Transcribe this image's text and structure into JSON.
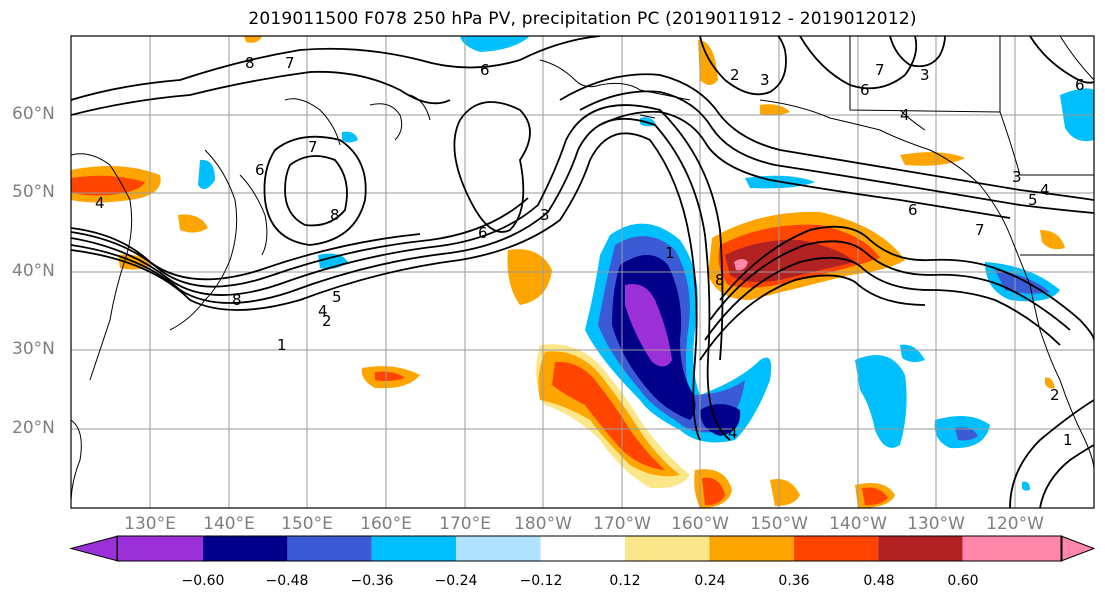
{
  "title": "2019011500 F078 250 hPa PV, precipitation PC (2019011912 - 2019012012)",
  "map": {
    "lat_labels": [
      "60°N",
      "50°N",
      "40°N",
      "30°N",
      "20°N"
    ],
    "lon_labels": [
      "130°E",
      "140°E",
      "150°E",
      "160°E",
      "170°E",
      "180°W",
      "170°W",
      "160°W",
      "150°W",
      "140°W",
      "130°W",
      "120°W"
    ],
    "contour_labels": [
      "8",
      "7",
      "6",
      "3",
      "2",
      "6",
      "7",
      "6",
      "8",
      "5",
      "4",
      "3",
      "2",
      "1",
      "6",
      "8",
      "4",
      "1",
      "6",
      "7",
      "6",
      "4",
      "5",
      "3",
      "4",
      "2",
      "1",
      "7",
      "3",
      "8",
      "4"
    ]
  },
  "colorbar": {
    "ticks": [
      "−0.60",
      "−0.48",
      "−0.36",
      "−0.24",
      "−0.12",
      "0.12",
      "0.24",
      "0.36",
      "0.48",
      "0.60"
    ],
    "colors": [
      "#9b30d9",
      "#00008b",
      "#3b5bd6",
      "#00bfff",
      "#b0e2ff",
      "#ffffff",
      "#fce68a",
      "#ffa500",
      "#ff4500",
      "#b22222",
      "#ff88aa"
    ]
  }
}
